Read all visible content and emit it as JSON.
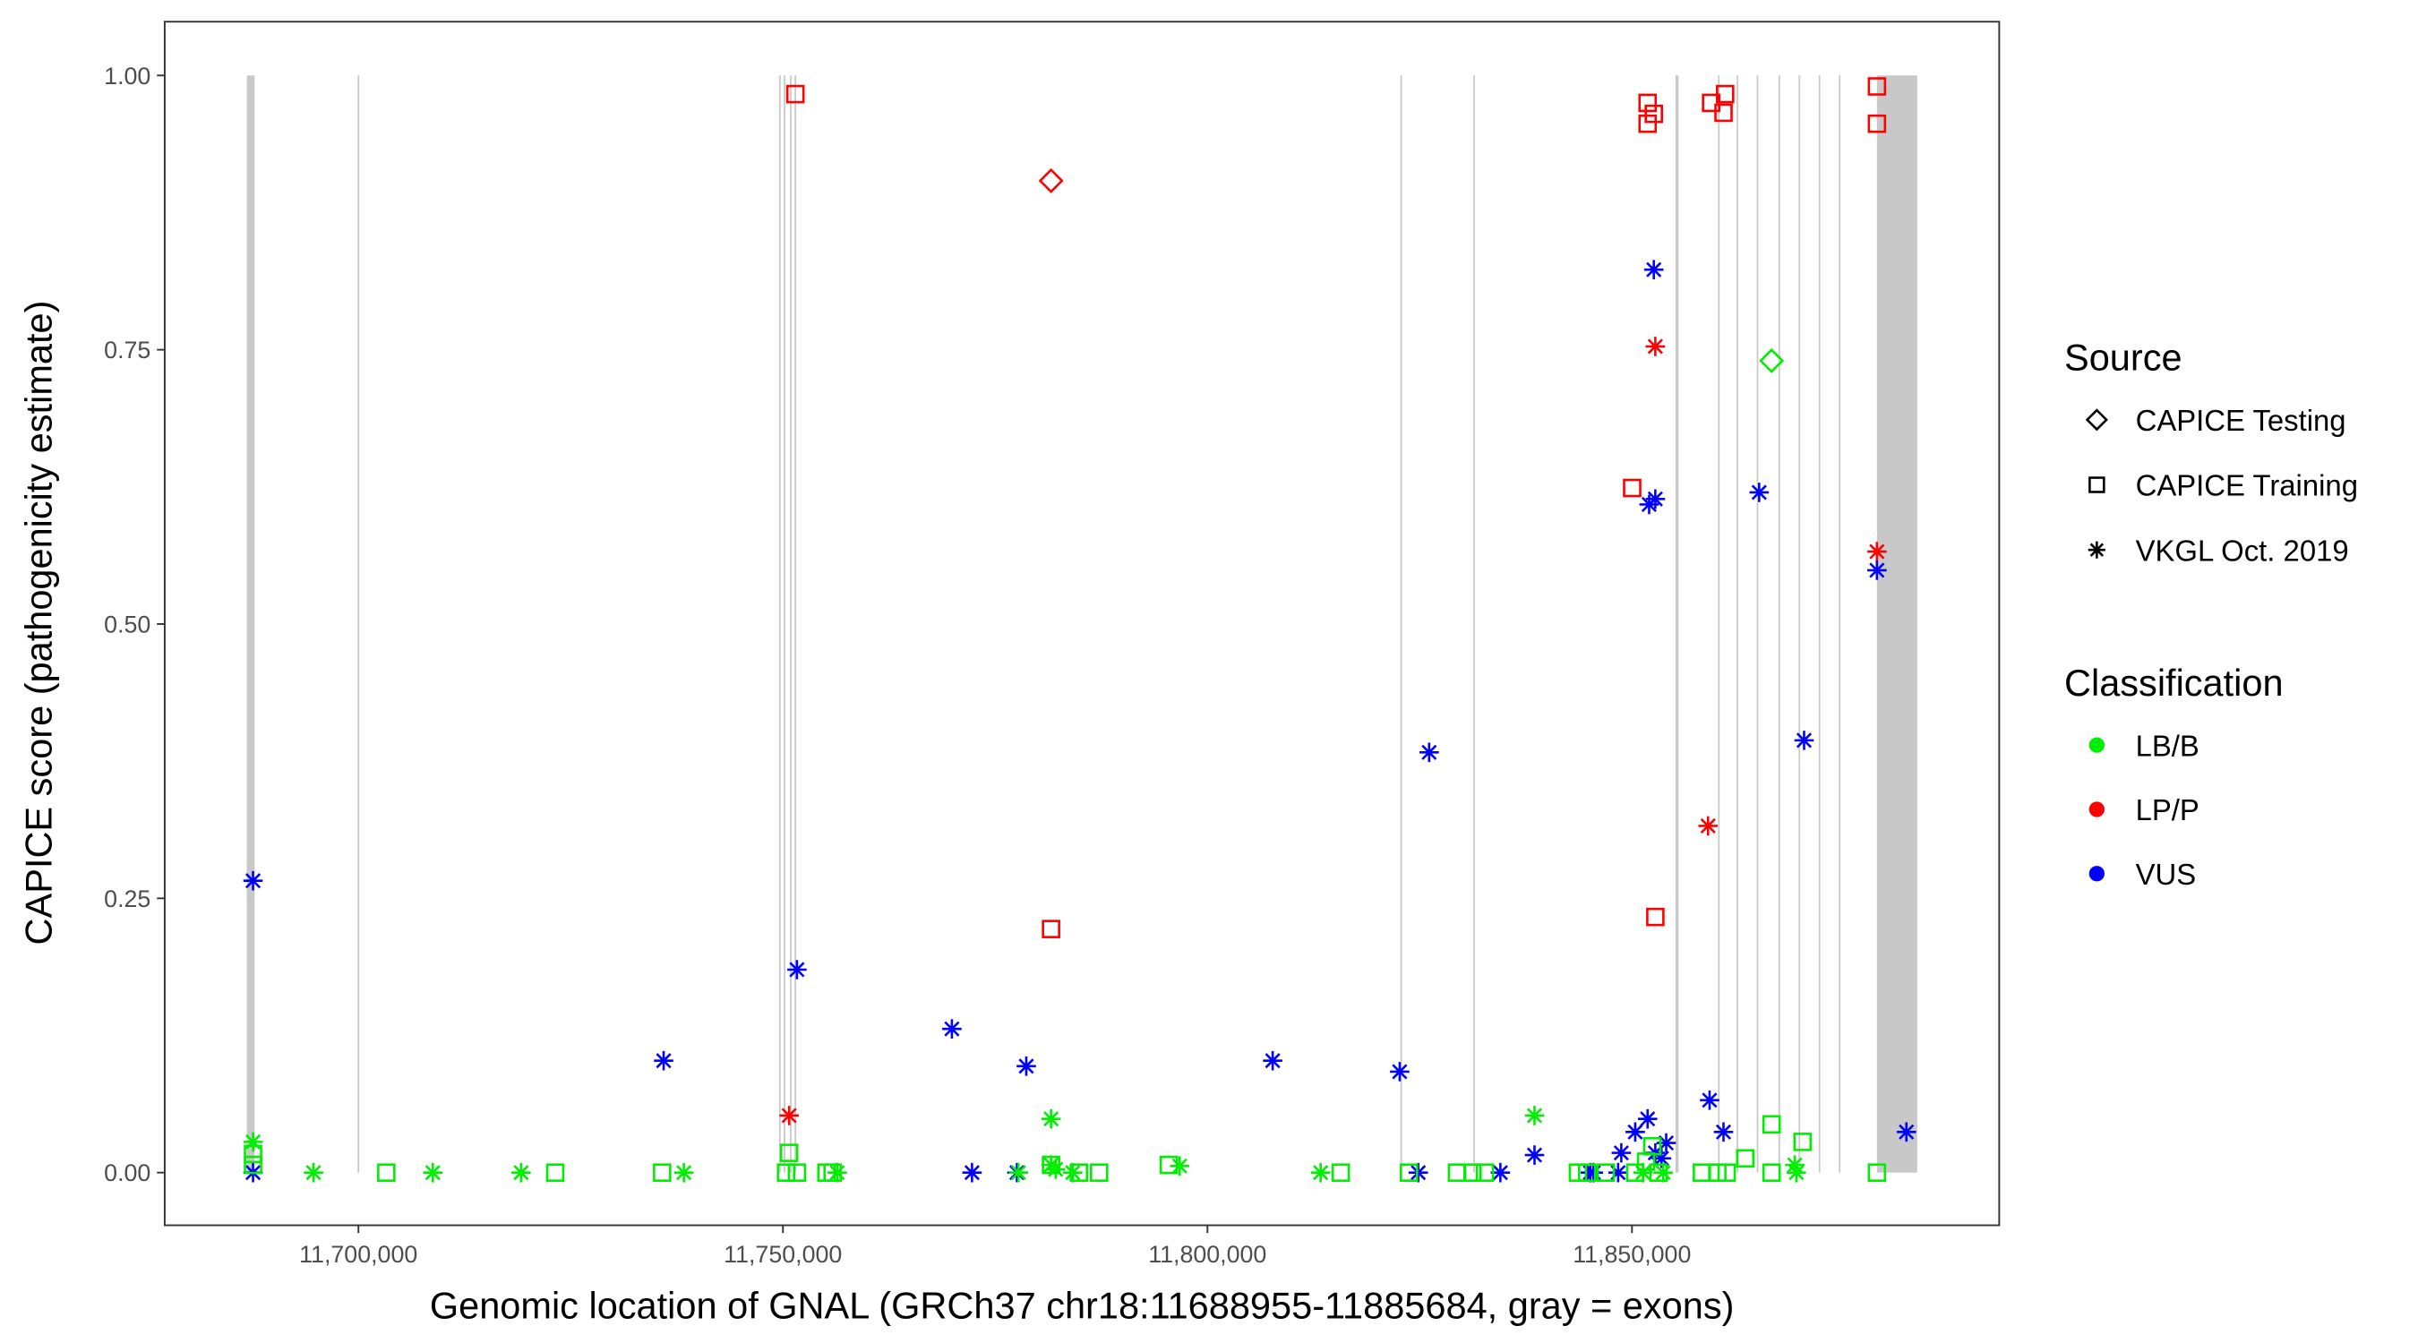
{
  "chart_data": {
    "type": "scatter",
    "title": "",
    "xlabel": "Genomic location of GNAL (GRCh37 chr18:11688955-11885684, gray = exons)",
    "ylabel": "CAPICE score (pathogenicity estimate)",
    "xlim": [
      11677185,
      11893250
    ],
    "ylim": [
      -0.048,
      1.049
    ],
    "grid": false,
    "x_ticks": [
      11700000,
      11750000,
      11800000,
      11850000
    ],
    "x_tick_labels": [
      "11,700,000",
      "11,750,000",
      "11,800,000",
      "11,850,000"
    ],
    "y_ticks": [
      0,
      0.25,
      0.5,
      0.75,
      1.0
    ],
    "y_tick_labels": [
      "0.00",
      "0.25",
      "0.50",
      "0.75",
      "1.00"
    ],
    "exons": [
      [
        11686860,
        11687770
      ],
      [
        11699910,
        11700090
      ],
      [
        11749550,
        11749730
      ],
      [
        11750100,
        11750280
      ],
      [
        11750830,
        11751010
      ],
      [
        11751370,
        11751560
      ],
      [
        11822730,
        11822910
      ],
      [
        11831310,
        11831490
      ],
      [
        11855130,
        11855490
      ],
      [
        11860140,
        11860320
      ],
      [
        11862330,
        11862510
      ],
      [
        11864700,
        11864880
      ],
      [
        11867260,
        11867440
      ],
      [
        11869630,
        11869810
      ],
      [
        11872000,
        11872180
      ],
      [
        11874370,
        11874550
      ],
      [
        11878850,
        11883600
      ]
    ],
    "exon_color": "#c8c8c8",
    "legend": {
      "placement": "right",
      "source_title": "Source",
      "source_items": [
        {
          "key": "testing",
          "label": "CAPICE Testing",
          "shape": "diamond"
        },
        {
          "key": "training",
          "label": "CAPICE Training",
          "shape": "square"
        },
        {
          "key": "vkgl",
          "label": "VKGL Oct. 2019",
          "shape": "asterisk"
        }
      ],
      "class_title": "Classification",
      "class_items": [
        {
          "key": "LB/B",
          "label": "LB/B",
          "color": "#00ee00"
        },
        {
          "key": "LP/P",
          "label": "LP/P",
          "color": "#ff0000"
        },
        {
          "key": "VUS",
          "label": "VUS",
          "color": "#0000ff"
        }
      ]
    },
    "point_fields": [
      "position",
      "score",
      "source",
      "classification"
    ],
    "points": [
      [
        11751470,
        0.983,
        "training",
        "LP/P"
      ],
      [
        11851840,
        0.975,
        "training",
        "LP/P"
      ],
      [
        11852570,
        0.965,
        "training",
        "LP/P"
      ],
      [
        11851840,
        0.956,
        "training",
        "LP/P"
      ],
      [
        11859320,
        0.975,
        "training",
        "LP/P"
      ],
      [
        11860970,
        0.983,
        "training",
        "LP/P"
      ],
      [
        11860780,
        0.966,
        "training",
        "LP/P"
      ],
      [
        11878850,
        0.99,
        "training",
        "LP/P"
      ],
      [
        11878850,
        0.956,
        "training",
        "LP/P"
      ],
      [
        11850020,
        0.624,
        "training",
        "LP/P"
      ],
      [
        11781580,
        0.222,
        "training",
        "LP/P"
      ],
      [
        11852750,
        0.233,
        "training",
        "LP/P"
      ],
      [
        11781580,
        0.904,
        "testing",
        "LP/P"
      ],
      [
        11866440,
        0.74,
        "testing",
        "LB/B"
      ],
      [
        11852750,
        0.753,
        "vkgl",
        "LP/P"
      ],
      [
        11878850,
        0.566,
        "vkgl",
        "LP/P"
      ],
      [
        11858960,
        0.316,
        "vkgl",
        "LP/P"
      ],
      [
        11750730,
        0.052,
        "vkgl",
        "LP/P"
      ],
      [
        11687590,
        0.266,
        "vkgl",
        "VUS"
      ],
      [
        11852570,
        0.823,
        "vkgl",
        "VUS"
      ],
      [
        11852020,
        0.609,
        "vkgl",
        "VUS"
      ],
      [
        11852750,
        0.614,
        "vkgl",
        "VUS"
      ],
      [
        11864980,
        0.62,
        "vkgl",
        "VUS"
      ],
      [
        11878850,
        0.549,
        "vkgl",
        "VUS"
      ],
      [
        11826110,
        0.383,
        "vkgl",
        "VUS"
      ],
      [
        11870270,
        0.394,
        "vkgl",
        "VUS"
      ],
      [
        11751650,
        0.185,
        "vkgl",
        "VUS"
      ],
      [
        11735950,
        0.102,
        "vkgl",
        "VUS"
      ],
      [
        11769900,
        0.131,
        "vkgl",
        "VUS"
      ],
      [
        11778660,
        0.097,
        "vkgl",
        "VUS"
      ],
      [
        11807680,
        0.102,
        "vkgl",
        "VUS"
      ],
      [
        11822640,
        0.092,
        "vkgl",
        "VUS"
      ],
      [
        11859140,
        0.066,
        "vkgl",
        "VUS"
      ],
      [
        11860780,
        0.037,
        "vkgl",
        "VUS"
      ],
      [
        11882320,
        0.037,
        "vkgl",
        "VUS"
      ],
      [
        11838520,
        0.016,
        "vkgl",
        "VUS"
      ],
      [
        11851840,
        0.049,
        "vkgl",
        "VUS"
      ],
      [
        11850380,
        0.037,
        "vkgl",
        "VUS"
      ],
      [
        11848740,
        0.018,
        "vkgl",
        "VUS"
      ],
      [
        11854030,
        0.027,
        "vkgl",
        "VUS"
      ],
      [
        11853480,
        0.013,
        "vkgl",
        "VUS"
      ],
      [
        11852750,
        0.018,
        "vkgl",
        "VUS"
      ],
      [
        11687590,
        0.0,
        "vkgl",
        "VUS"
      ],
      [
        11772270,
        0.0,
        "vkgl",
        "VUS"
      ],
      [
        11777560,
        0.0,
        "vkgl",
        "VUS"
      ],
      [
        11824830,
        0.0,
        "vkgl",
        "VUS"
      ],
      [
        11834500,
        0.0,
        "vkgl",
        "VUS"
      ],
      [
        11845450,
        0.0,
        "vkgl",
        "VUS"
      ],
      [
        11845090,
        0.0,
        "vkgl",
        "VUS"
      ],
      [
        11848370,
        0.0,
        "vkgl",
        "VUS"
      ],
      [
        11687590,
        0.028,
        "vkgl",
        "LB/B"
      ],
      [
        11694710,
        0.0,
        "vkgl",
        "LB/B"
      ],
      [
        11708760,
        0.0,
        "vkgl",
        "LB/B"
      ],
      [
        11719160,
        0.0,
        "vkgl",
        "LB/B"
      ],
      [
        11738330,
        0.0,
        "vkgl",
        "LB/B"
      ],
      [
        11756390,
        0.0,
        "vkgl",
        "LB/B"
      ],
      [
        11777740,
        0.0,
        "vkgl",
        "LB/B"
      ],
      [
        11781580,
        0.049,
        "vkgl",
        "LB/B"
      ],
      [
        11781580,
        0.007,
        "vkgl",
        "LB/B"
      ],
      [
        11782130,
        0.003,
        "vkgl",
        "LB/B"
      ],
      [
        11784130,
        0.0,
        "vkgl",
        "LB/B"
      ],
      [
        11796730,
        0.006,
        "vkgl",
        "LB/B"
      ],
      [
        11813330,
        0.0,
        "vkgl",
        "LB/B"
      ],
      [
        11838520,
        0.052,
        "vkgl",
        "LB/B"
      ],
      [
        11851290,
        0.0,
        "vkgl",
        "LB/B"
      ],
      [
        11869180,
        0.007,
        "vkgl",
        "LB/B"
      ],
      [
        11869360,
        0.0,
        "vkgl",
        "LB/B"
      ],
      [
        11853670,
        0.0,
        "vkgl",
        "LB/B"
      ],
      [
        11687590,
        0.017,
        "training",
        "LB/B"
      ],
      [
        11687590,
        0.007,
        "training",
        "LB/B"
      ],
      [
        11703285,
        0.0,
        "training",
        "LB/B"
      ],
      [
        11723180,
        0.0,
        "training",
        "LB/B"
      ],
      [
        11735770,
        0.0,
        "training",
        "LB/B"
      ],
      [
        11750730,
        0.018,
        "training",
        "LB/B"
      ],
      [
        11750370,
        0.0,
        "training",
        "LB/B"
      ],
      [
        11751650,
        0.0,
        "training",
        "LB/B"
      ],
      [
        11755120,
        0.0,
        "training",
        "LB/B"
      ],
      [
        11755850,
        0.0,
        "training",
        "LB/B"
      ],
      [
        11784860,
        0.0,
        "training",
        "LB/B"
      ],
      [
        11787240,
        0.0,
        "training",
        "LB/B"
      ],
      [
        11795450,
        0.007,
        "training",
        "LB/B"
      ],
      [
        11815700,
        0.0,
        "training",
        "LB/B"
      ],
      [
        11823740,
        0.0,
        "training",
        "LB/B"
      ],
      [
        11829390,
        0.0,
        "training",
        "LB/B"
      ],
      [
        11831220,
        0.0,
        "training",
        "LB/B"
      ],
      [
        11832680,
        0.0,
        "training",
        "LB/B"
      ],
      [
        11843630,
        0.0,
        "training",
        "LB/B"
      ],
      [
        11844720,
        0.0,
        "training",
        "LB/B"
      ],
      [
        11846910,
        0.0,
        "training",
        "LB/B"
      ],
      [
        11850380,
        0.0,
        "training",
        "LB/B"
      ],
      [
        11851660,
        0.01,
        "training",
        "LB/B"
      ],
      [
        11852390,
        0.024,
        "training",
        "LB/B"
      ],
      [
        11853120,
        0.0,
        "training",
        "LB/B"
      ],
      [
        11858230,
        0.0,
        "training",
        "LB/B"
      ],
      [
        11860050,
        0.0,
        "training",
        "LB/B"
      ],
      [
        11861150,
        0.0,
        "training",
        "LB/B"
      ],
      [
        11863340,
        0.013,
        "training",
        "LB/B"
      ],
      [
        11866440,
        0.044,
        "training",
        "LB/B"
      ],
      [
        11866440,
        0.0,
        "training",
        "LB/B"
      ],
      [
        11870090,
        0.028,
        "training",
        "LB/B"
      ],
      [
        11878850,
        0.0,
        "training",
        "LB/B"
      ],
      [
        11781580,
        0.007,
        "training",
        "LB/B"
      ]
    ]
  }
}
